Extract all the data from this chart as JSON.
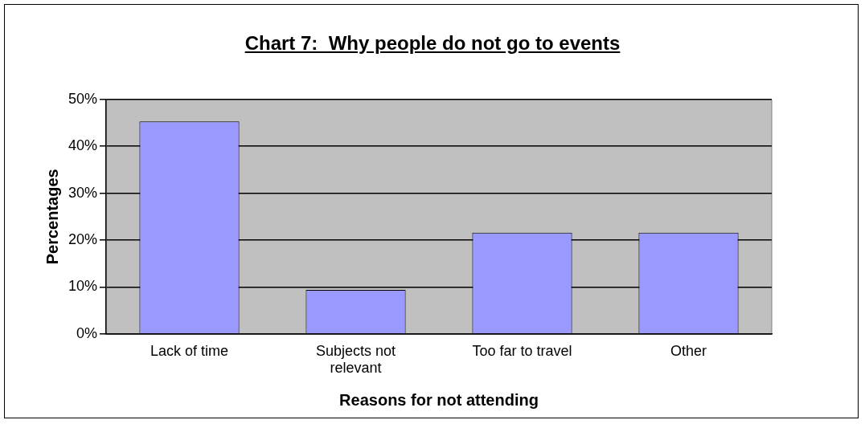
{
  "chart_data": {
    "type": "bar",
    "title": "Chart 7:  Why people do not go to events",
    "xlabel": "Reasons for not attending",
    "ylabel": "Percentages",
    "categories": [
      "Lack of time",
      "Subjects not relevant",
      "Too far to travel",
      "Other"
    ],
    "values": [
      45.3,
      9.4,
      21.6,
      21.6
    ],
    "color": "#9999ff",
    "ylim": [
      0,
      50
    ],
    "yticks": [
      {
        "value": 0,
        "label": "0%"
      },
      {
        "value": 10,
        "label": "10%"
      },
      {
        "value": 20,
        "label": "20%"
      },
      {
        "value": 30,
        "label": "30%"
      },
      {
        "value": 40,
        "label": "40%"
      },
      {
        "value": 50,
        "label": "50%"
      }
    ],
    "grid": "y",
    "legend": false
  }
}
